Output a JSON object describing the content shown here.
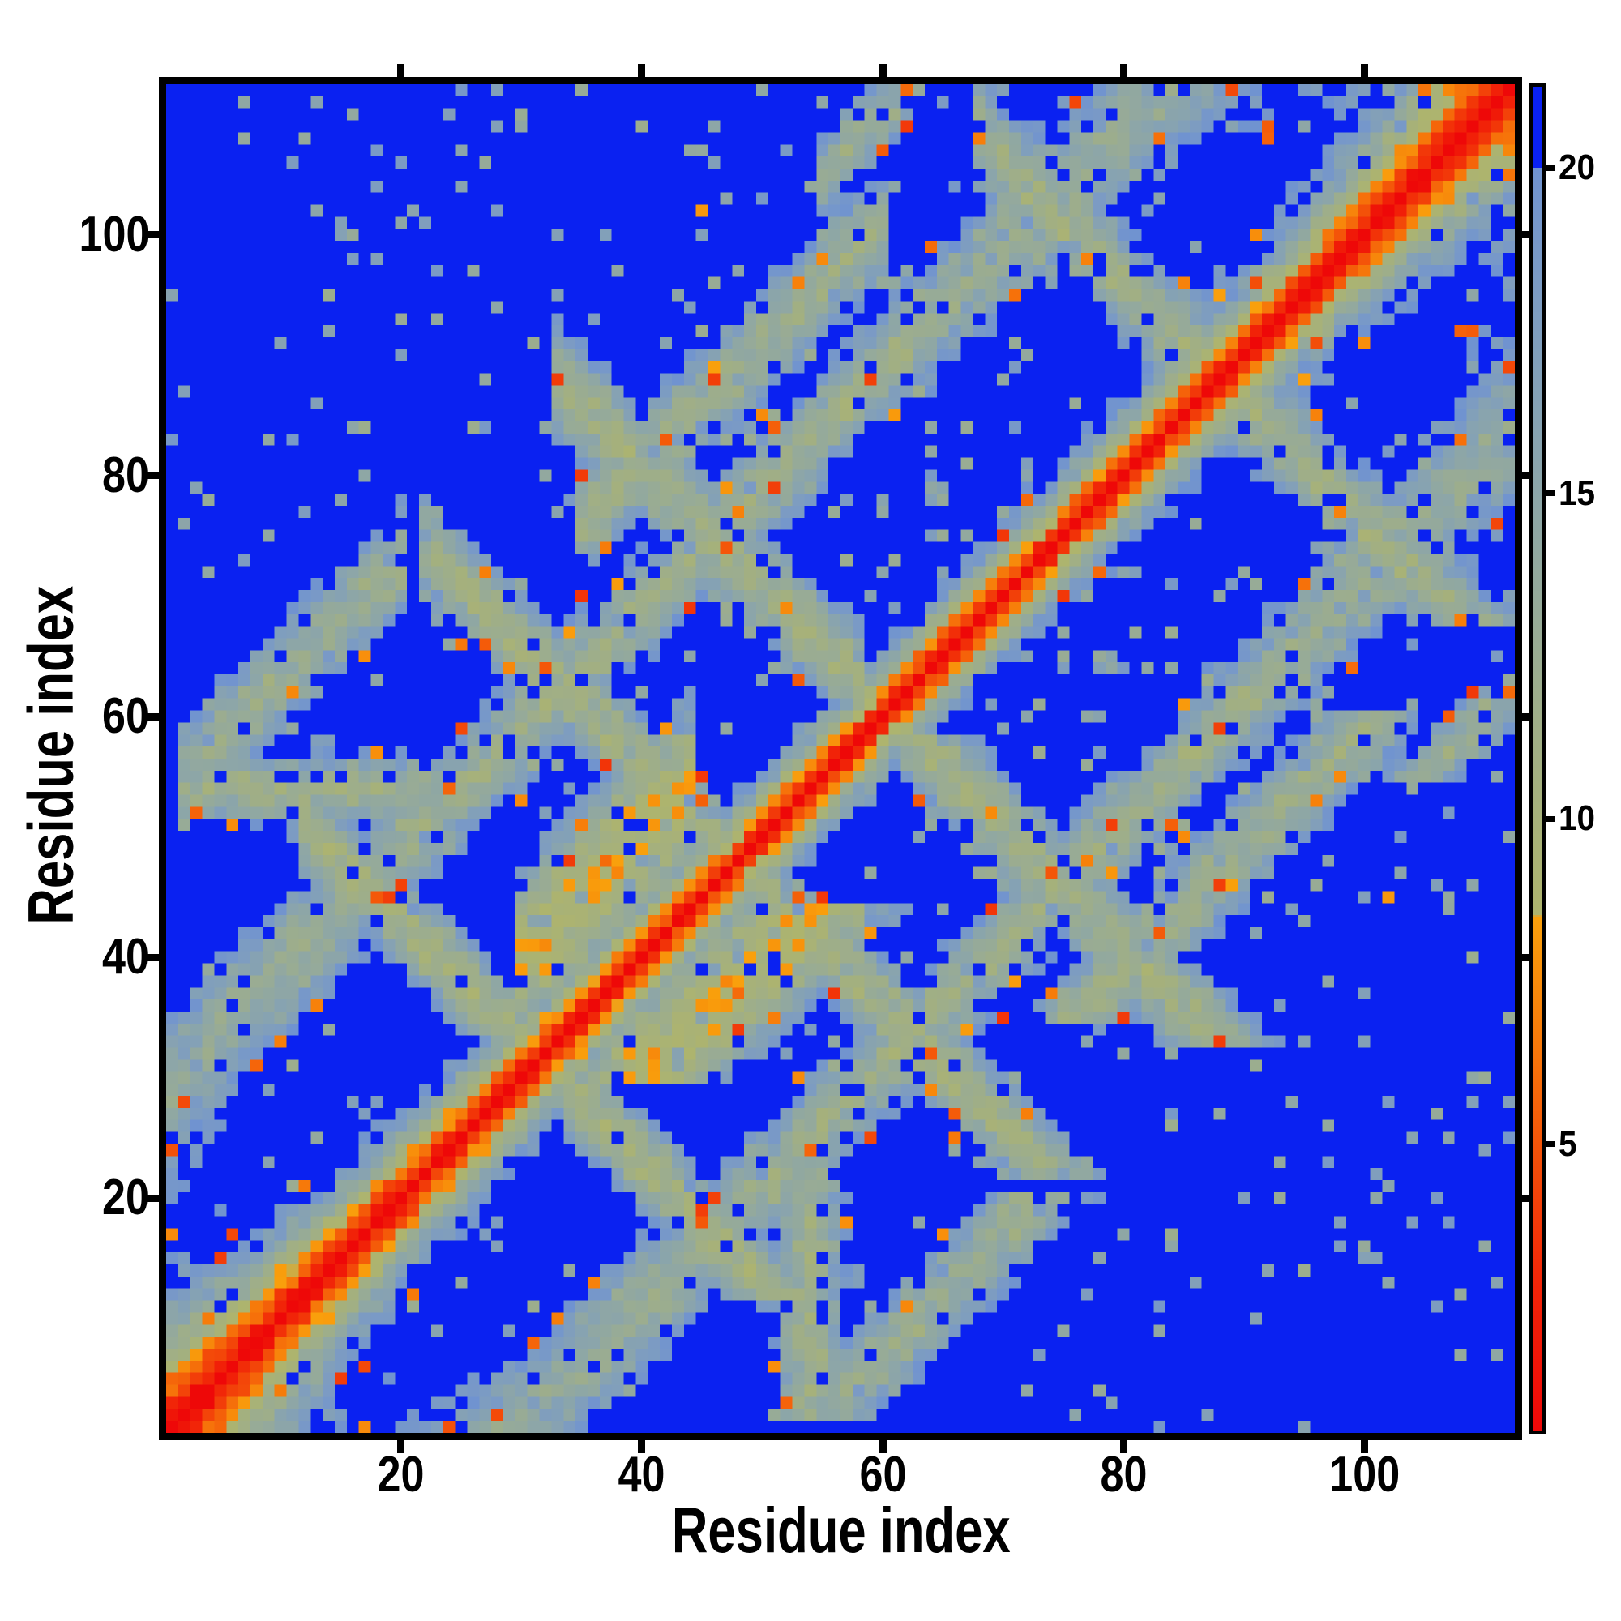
{
  "figure": {
    "background": "#ffffff",
    "frame_color": "#000000",
    "tick_color": "#000000",
    "text_color": "#000000"
  },
  "axes": {
    "xlabel": "Residue index",
    "ylabel": "Residue index",
    "x_ticks": [
      20,
      40,
      60,
      80,
      100
    ],
    "y_ticks": [
      20,
      40,
      60,
      80,
      100
    ],
    "x_range": [
      0.5,
      112.5
    ],
    "y_range": [
      0.5,
      112.5
    ]
  },
  "colorbar": {
    "ticks": [
      5,
      10,
      15,
      20
    ],
    "vmin": 0.6,
    "vmax": 21.25,
    "orientation": "vertical",
    "position": "right"
  },
  "chart_data": {
    "type": "heatmap",
    "title": "",
    "xlabel": "Residue index",
    "ylabel": "Residue index",
    "n_residues": 112,
    "x": "residue index 1..112",
    "y": "residue index 1..112",
    "value_description": "inter-residue distance matrix, symmetric, zero diagonal",
    "value_range": [
      0.6,
      21.25
    ],
    "grid": false,
    "legend": "colorbar right, ticks 5 10 15 20",
    "colormap": {
      "stops": [
        [
          0.6,
          "#ee0808"
        ],
        [
          2.8,
          "#f12408"
        ],
        [
          4.6,
          "#f34b09"
        ],
        [
          6.4,
          "#f6760a"
        ],
        [
          8.5,
          "#f9a00c"
        ],
        [
          8.52,
          "#aeb46d"
        ],
        [
          10.5,
          "#a4b07e"
        ],
        [
          12.5,
          "#9aac92"
        ],
        [
          14.5,
          "#8fa7a4"
        ],
        [
          16.5,
          "#84a1b6"
        ],
        [
          18.5,
          "#7a9ac6"
        ],
        [
          20.0,
          "#7093d0"
        ]
      ],
      "blue_clip": 20.0,
      "over_color": "#0a21f1",
      "orange_green_cutoff": 8.5
    },
    "matrix_spec": {
      "n": 112,
      "spiral": {
        "radius": 17.5,
        "turns": 3.8,
        "z_extent": 0.93,
        "z_scale": 1.35
      },
      "blocks": [
        {
          "type": "anti",
          "sum": 96,
          "i0": 22,
          "i1": 46,
          "w": 3.5,
          "d": 11.0
        },
        {
          "type": "anti",
          "sum": 121,
          "i0": 33,
          "i1": 58,
          "w": 4.0,
          "d": 11.5
        },
        {
          "type": "anti",
          "sum": 63,
          "i0": 12,
          "i1": 30,
          "w": 3.5,
          "d": 11.0
        },
        {
          "type": "anti",
          "sum": 176,
          "i0": 68,
          "i1": 86,
          "w": 4.0,
          "d": 11.5
        },
        {
          "type": "par",
          "diff": 41,
          "i0": 35,
          "i1": 60,
          "w": 4.0,
          "d": 12.0
        },
        {
          "type": "par",
          "diff": 53,
          "i0": 2,
          "i1": 20,
          "w": 4.0,
          "d": 12.5
        },
        {
          "type": "par",
          "diff": 50,
          "i0": 55,
          "i1": 62,
          "w": 3.0,
          "d": 13.0
        },
        {
          "type": "par",
          "diff": 10,
          "i0": 30,
          "i1": 44,
          "w": 6.0,
          "d": 9.0
        },
        {
          "type": "row",
          "j": 54,
          "i0": 3,
          "i1": 22,
          "w": 2.5,
          "d": 12.0
        }
      ],
      "noise_rel": 0.12,
      "noise_abs": 1.2,
      "close_prob": 0.025,
      "close_dist": 6.0,
      "close_spread": 2.5,
      "close_maxd": 24,
      "far_prob": 0.06,
      "far_dist": 22.0,
      "mid_prob": 0.05,
      "mid_dist": 15.5,
      "mid_spread": 3.5,
      "mid_maxd": 45,
      "seed": 7.31
    }
  }
}
